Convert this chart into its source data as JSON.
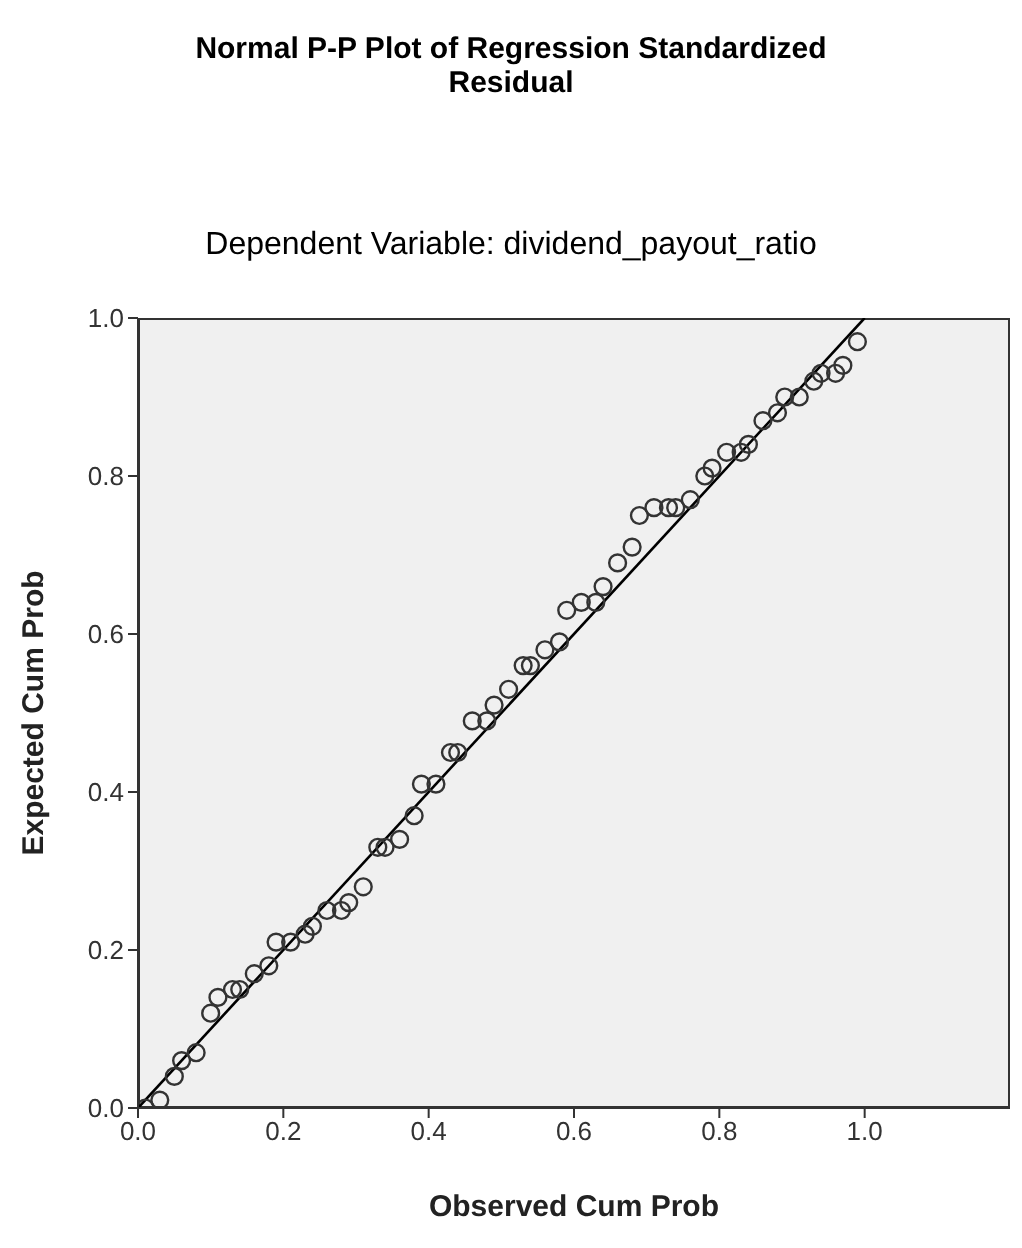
{
  "chart_data": {
    "type": "scatter",
    "title": "Normal P-P Plot of Regression Standardized Residual",
    "subtitle": "Dependent Variable: dividend_payout_ratio",
    "xlabel": "Observed Cum Prob",
    "ylabel": "Expected Cum Prob",
    "xlim": [
      0,
      1.2
    ],
    "ylim": [
      0,
      1
    ],
    "xticks": [
      {
        "value": 0,
        "label": "0.0"
      },
      0.2,
      0.4,
      0.6,
      0.8,
      {
        "value": 1,
        "label": "1.0"
      }
    ],
    "yticks": [
      {
        "value": 0,
        "label": "0.0"
      },
      0.2,
      0.4,
      0.6,
      0.8,
      {
        "value": 1,
        "label": "1.0"
      }
    ],
    "series": [
      {
        "marker": "circle",
        "color": "#333333",
        "x": [
          0.01,
          0.03,
          0.05,
          0.06,
          0.08,
          0.1,
          0.11,
          0.13,
          0.14,
          0.16,
          0.18,
          0.19,
          0.21,
          0.23,
          0.24,
          0.26,
          0.28,
          0.29,
          0.31,
          0.33,
          0.34,
          0.36,
          0.38,
          0.39,
          0.41,
          0.43,
          0.44,
          0.46,
          0.48,
          0.49,
          0.51,
          0.53,
          0.54,
          0.56,
          0.58,
          0.59,
          0.61,
          0.63,
          0.64,
          0.66,
          0.68,
          0.69,
          0.71,
          0.73,
          0.74,
          0.76,
          0.78,
          0.79,
          0.81,
          0.83,
          0.84,
          0.86,
          0.88,
          0.89,
          0.91,
          0.93,
          0.94,
          0.96,
          0.97,
          0.99
        ],
        "values": [
          0.0,
          0.01,
          0.04,
          0.06,
          0.07,
          0.12,
          0.14,
          0.15,
          0.15,
          0.17,
          0.18,
          0.21,
          0.21,
          0.22,
          0.23,
          0.25,
          0.25,
          0.26,
          0.28,
          0.33,
          0.33,
          0.34,
          0.37,
          0.41,
          0.41,
          0.45,
          0.45,
          0.49,
          0.49,
          0.51,
          0.53,
          0.56,
          0.56,
          0.58,
          0.59,
          0.63,
          0.64,
          0.64,
          0.66,
          0.69,
          0.71,
          0.75,
          0.76,
          0.76,
          0.76,
          0.77,
          0.8,
          0.81,
          0.83,
          0.83,
          0.84,
          0.87,
          0.88,
          0.9,
          0.9,
          0.92,
          0.93,
          0.93,
          0.94,
          0.97
        ]
      },
      {
        "type": "line",
        "marker": "none",
        "color": "#000000",
        "x": [
          0,
          1
        ],
        "values": [
          0,
          1
        ]
      }
    ]
  }
}
